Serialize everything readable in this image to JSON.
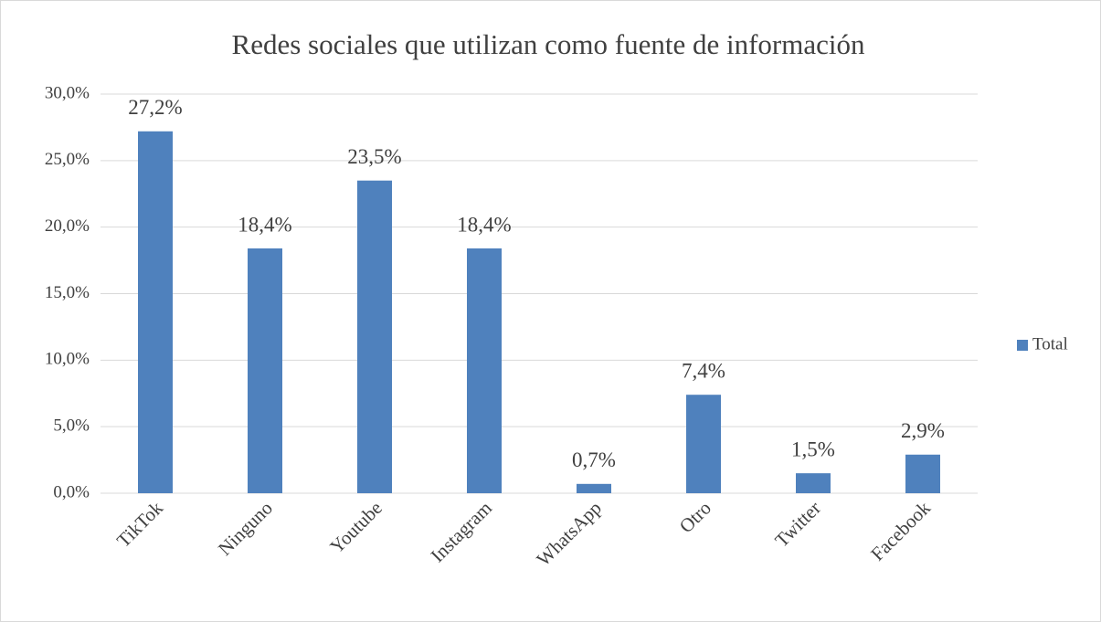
{
  "chart_data": {
    "type": "bar",
    "title": "Redes sociales que utilizan como fuente de información",
    "categories": [
      "TikTok",
      "Ninguno",
      "Youtube",
      "Instagram",
      "WhatsApp",
      "Otro",
      "Twitter",
      "Facebook"
    ],
    "series": [
      {
        "name": "Total",
        "color": "#4f81bd",
        "values": [
          27.2,
          18.4,
          23.5,
          18.4,
          0.7,
          7.4,
          1.5,
          2.9
        ],
        "value_labels": [
          "27,2%",
          "18,4%",
          "23,5%",
          "18,4%",
          "0,7%",
          "7,4%",
          "1,5%",
          "2,9%"
        ]
      }
    ],
    "ylim": [
      0,
      30
    ],
    "yticks": [
      {
        "value": 0,
        "label": "0,0%"
      },
      {
        "value": 5,
        "label": "5,0%"
      },
      {
        "value": 10,
        "label": "10,0%"
      },
      {
        "value": 15,
        "label": "15,0%"
      },
      {
        "value": 20,
        "label": "20,0%"
      },
      {
        "value": 25,
        "label": "25,0%"
      },
      {
        "value": 30,
        "label": "30,0%"
      }
    ],
    "grid": true,
    "legend": "right"
  }
}
